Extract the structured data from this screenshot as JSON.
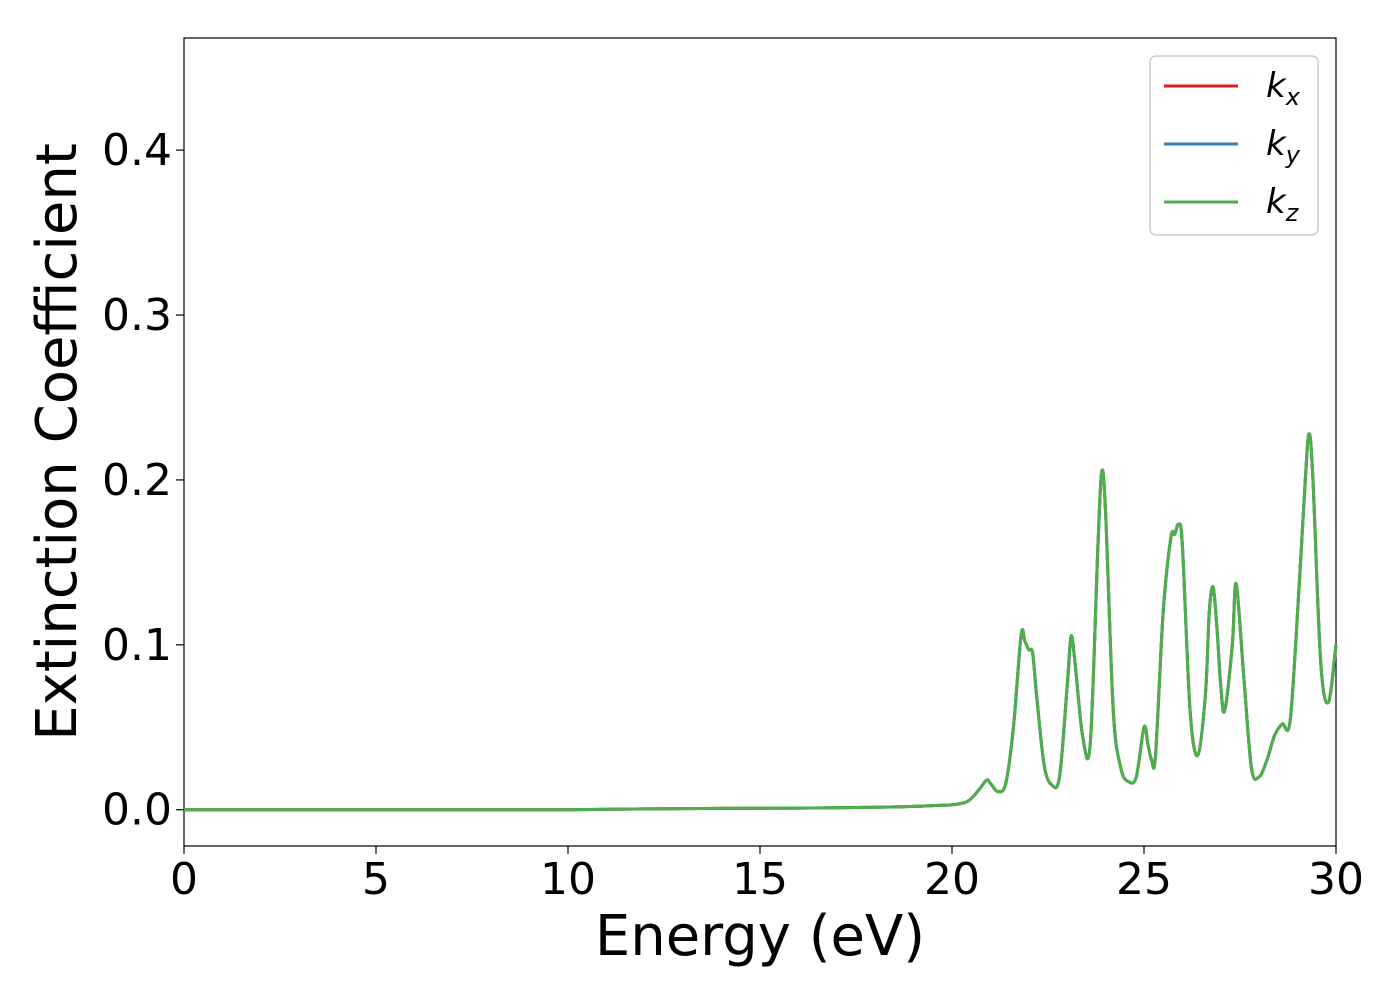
{
  "chart_data": {
    "type": "line",
    "xlabel": "Energy (eV)",
    "ylabel": "Extinction Coefficient",
    "xlim": [
      0,
      30
    ],
    "ylim": [
      -0.022,
      0.468
    ],
    "xticks": [
      0,
      5,
      10,
      15,
      20,
      25,
      30
    ],
    "xtick_labels": [
      "0",
      "5",
      "10",
      "15",
      "20",
      "25",
      "30"
    ],
    "yticks": [
      0.0,
      0.1,
      0.2,
      0.3,
      0.4
    ],
    "ytick_labels": [
      "0.0",
      "0.1",
      "0.2",
      "0.3",
      "0.4"
    ],
    "grid": false,
    "legend_position": "top-right",
    "series": [
      {
        "name": "k_x",
        "label_base": "k",
        "label_sub": "x",
        "color": "#e41a1c"
      },
      {
        "name": "k_y",
        "label_base": "k",
        "label_sub": "y",
        "color": "#377eb8"
      },
      {
        "name": "k_z",
        "label_base": "k",
        "label_sub": "z",
        "color": "#4daf4a"
      }
    ],
    "x": [
      0,
      2,
      4,
      6,
      8,
      10,
      12,
      14,
      16,
      18,
      19,
      19.5,
      20,
      20.4,
      20.7,
      20.9,
      21.0,
      21.2,
      21.4,
      21.6,
      21.8,
      21.9,
      22.0,
      22.1,
      22.2,
      22.4,
      22.6,
      22.8,
      23.0,
      23.1,
      23.2,
      23.4,
      23.6,
      23.8,
      23.9,
      24.0,
      24.2,
      24.4,
      24.6,
      24.8,
      25.0,
      25.1,
      25.2,
      25.3,
      25.5,
      25.7,
      25.8,
      25.9,
      26.0,
      26.2,
      26.4,
      26.6,
      26.7,
      26.8,
      26.9,
      27.0,
      27.1,
      27.3,
      27.4,
      27.6,
      27.8,
      28.0,
      28.2,
      28.4,
      28.6,
      28.8,
      29.0,
      29.2,
      29.3,
      29.4,
      29.6,
      29.8,
      30.0
    ],
    "y": [
      0.0,
      0.0,
      0.0,
      0.0,
      0.0,
      0.0,
      0.0005,
      0.0008,
      0.001,
      0.0015,
      0.002,
      0.0025,
      0.003,
      0.005,
      0.012,
      0.018,
      0.016,
      0.011,
      0.016,
      0.05,
      0.106,
      0.102,
      0.097,
      0.095,
      0.07,
      0.027,
      0.015,
      0.02,
      0.075,
      0.105,
      0.09,
      0.045,
      0.04,
      0.16,
      0.205,
      0.18,
      0.06,
      0.025,
      0.017,
      0.02,
      0.05,
      0.04,
      0.03,
      0.033,
      0.12,
      0.165,
      0.167,
      0.173,
      0.16,
      0.06,
      0.033,
      0.07,
      0.12,
      0.135,
      0.11,
      0.075,
      0.06,
      0.1,
      0.137,
      0.08,
      0.025,
      0.02,
      0.03,
      0.045,
      0.052,
      0.053,
      0.12,
      0.2,
      0.228,
      0.2,
      0.09,
      0.065,
      0.1
    ]
  }
}
